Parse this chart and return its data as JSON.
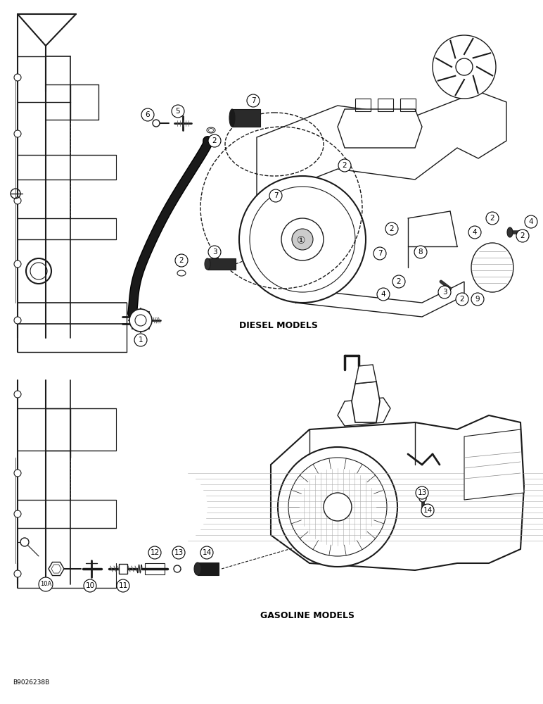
{
  "background_color": "#ffffff",
  "diesel_label": "DIESEL MODELS",
  "gasoline_label": "GASOLINE MODELS",
  "watermark": "B9026238B",
  "fig_width": 7.72,
  "fig_height": 10.0,
  "dpi": 100,
  "line_color": "#1a1a1a",
  "label_positions": {
    "diesel": [
      340,
      462
    ],
    "gasoline": [
      370,
      875
    ],
    "watermark": [
      18,
      970
    ]
  }
}
